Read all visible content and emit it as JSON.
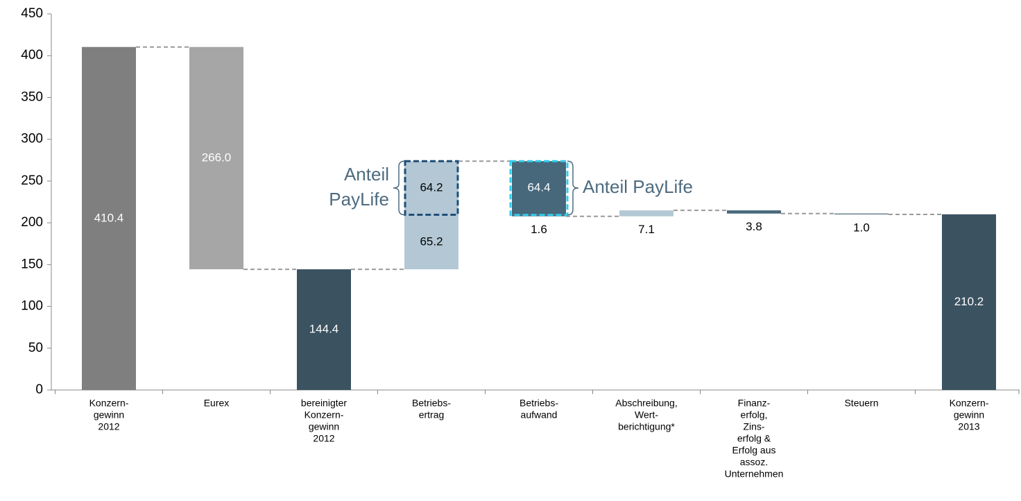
{
  "chart_data": {
    "type": "waterfall",
    "categories": [
      [
        "Konzern-",
        "gewinn",
        "2012"
      ],
      [
        "Eurex"
      ],
      [
        "bereinigter",
        "Konzern-",
        "gewinn",
        "2012"
      ],
      [
        "Betriebs-",
        "ertrag"
      ],
      [
        "Betriebs-",
        "aufwand"
      ],
      [
        "Abschreibung,",
        "Wert-",
        "berichtigung*"
      ],
      [
        "Finanz-",
        "erfolg,",
        "Zins-",
        "erfolg &",
        "Erfolg aus",
        "assoz.",
        "Unternehmen"
      ],
      [
        "Steuern"
      ],
      [
        "Konzern-",
        "gewinn",
        "2013"
      ]
    ],
    "kinds": [
      "total",
      "decrease",
      "total",
      "increase",
      "decrease",
      "increase",
      "decrease",
      "decrease",
      "total"
    ],
    "values": [
      [
        410.4
      ],
      [
        266.0
      ],
      [
        144.4
      ],
      [
        65.2,
        64.2
      ],
      [
        64.4,
        1.6
      ],
      [
        7.1
      ],
      [
        3.8
      ],
      [
        1.0
      ],
      [
        210.2
      ]
    ],
    "value_labels": [
      [
        "410.4"
      ],
      [
        "266.0"
      ],
      [
        "144.4"
      ],
      [
        "65.2",
        "64.2"
      ],
      [
        "64.4",
        "1.6"
      ],
      [
        "7.1"
      ],
      [
        "3.8"
      ],
      [
        "1.0"
      ],
      [
        "210.2"
      ]
    ],
    "colors": [
      [
        "#7f7f7f"
      ],
      [
        "#a6a6a6"
      ],
      [
        "#3b5260"
      ],
      [
        "#b3c8d4",
        "#b3c8d4"
      ],
      [
        "#46687a",
        "#46687a"
      ],
      [
        "#b3c8d4"
      ],
      [
        "#46687a"
      ],
      [
        "#46687a"
      ],
      [
        "#3b5260"
      ]
    ],
    "label_colors": [
      [
        "#ffffff"
      ],
      [
        "#ffffff"
      ],
      [
        "#ffffff"
      ],
      [
        "#000000",
        "#000000"
      ],
      [
        "#ffffff",
        "#000000"
      ],
      [
        "#000000"
      ],
      [
        "#000000"
      ],
      [
        "#000000"
      ],
      [
        "#ffffff"
      ]
    ],
    "annotations": [
      {
        "lines": [
          "Anteil",
          "PayLife"
        ],
        "color": "#1f4e79"
      },
      {
        "lines": [
          "Anteil PayLife"
        ],
        "color": "#33ccee"
      }
    ],
    "ylim": [
      0,
      450
    ],
    "yticks": [
      0,
      50,
      100,
      150,
      200,
      250,
      300,
      350,
      400,
      450
    ],
    "grid": false
  }
}
